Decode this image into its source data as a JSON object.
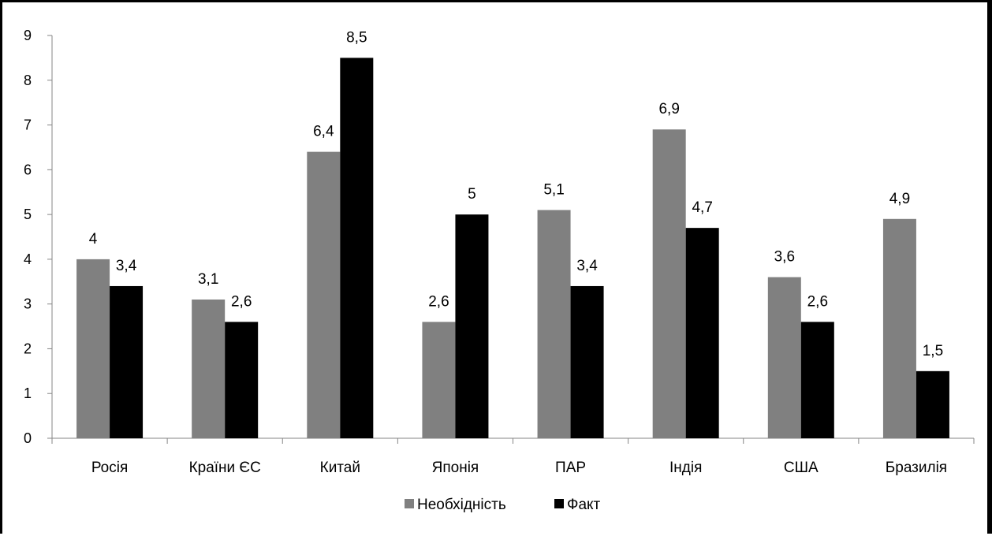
{
  "chart_data": {
    "type": "bar",
    "categories": [
      "Росія",
      "Країни ЄС",
      "Китай",
      "Японія",
      "ПАР",
      "Індія",
      "США",
      "Бразилія"
    ],
    "series": [
      {
        "name": "Необхідність",
        "color": "#808080",
        "values": [
          4,
          3.1,
          6.4,
          2.6,
          5.1,
          6.9,
          3.6,
          4.9
        ]
      },
      {
        "name": "Факт",
        "color": "#000000",
        "values": [
          3.4,
          2.6,
          8.5,
          5,
          3.4,
          4.7,
          2.6,
          1.5
        ]
      }
    ],
    "data_labels": [
      [
        "4",
        "3,1",
        "6,4",
        "2,6",
        "5,1",
        "6,9",
        "3,6",
        "4,9"
      ],
      [
        "3,4",
        "2,6",
        "8,5",
        "5",
        "3,4",
        "4,7",
        "2,6",
        "1,5"
      ]
    ],
    "ylim": [
      0,
      9
    ],
    "yticks": [
      0,
      1,
      2,
      3,
      4,
      5,
      6,
      7,
      8,
      9
    ],
    "grid": false,
    "legend_position": "bottom",
    "title": "",
    "xlabel": "",
    "ylabel": ""
  }
}
